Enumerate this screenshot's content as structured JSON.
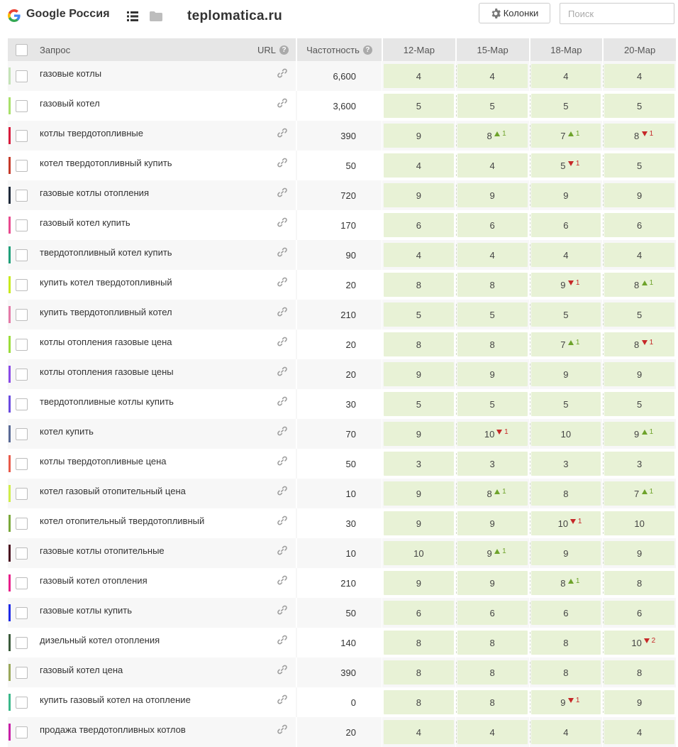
{
  "header": {
    "engine": "Google Россия",
    "site": "teplomatica.ru",
    "columns_button": "Колонки",
    "search_placeholder": "Поиск"
  },
  "table": {
    "headers": {
      "query": "Запрос",
      "url": "URL",
      "frequency": "Частотность",
      "dates": [
        "12-Мар",
        "15-Мар",
        "18-Мар",
        "20-Мар"
      ]
    },
    "rows": [
      {
        "color": "#c5e3b8",
        "query": "газовые котлы",
        "freq": "6,600",
        "pos": [
          {
            "v": "4"
          },
          {
            "v": "4"
          },
          {
            "v": "4"
          },
          {
            "v": "4"
          }
        ]
      },
      {
        "color": "#a8e06a",
        "query": "газовый котел",
        "freq": "3,600",
        "pos": [
          {
            "v": "5"
          },
          {
            "v": "5"
          },
          {
            "v": "5"
          },
          {
            "v": "5"
          }
        ]
      },
      {
        "color": "#d81b3c",
        "query": "котлы твердотопливные",
        "freq": "390",
        "pos": [
          {
            "v": "9"
          },
          {
            "v": "8",
            "d": "1",
            "dir": "up"
          },
          {
            "v": "7",
            "d": "1",
            "dir": "up"
          },
          {
            "v": "8",
            "d": "1",
            "dir": "down"
          }
        ]
      },
      {
        "color": "#c53a2a",
        "query": "котел твердотопливный купить",
        "freq": "50",
        "pos": [
          {
            "v": "4"
          },
          {
            "v": "4"
          },
          {
            "v": "5",
            "d": "1",
            "dir": "down"
          },
          {
            "v": "5"
          }
        ]
      },
      {
        "color": "#1f2a3a",
        "query": "газовые котлы отопления",
        "freq": "720",
        "pos": [
          {
            "v": "9"
          },
          {
            "v": "9"
          },
          {
            "v": "9"
          },
          {
            "v": "9"
          }
        ]
      },
      {
        "color": "#e84a8e",
        "query": "газовый котел купить",
        "freq": "170",
        "pos": [
          {
            "v": "6"
          },
          {
            "v": "6"
          },
          {
            "v": "6"
          },
          {
            "v": "6"
          }
        ]
      },
      {
        "color": "#1fa07a",
        "query": "твердотопливный котел купить",
        "freq": "90",
        "pos": [
          {
            "v": "4"
          },
          {
            "v": "4"
          },
          {
            "v": "4"
          },
          {
            "v": "4"
          }
        ]
      },
      {
        "color": "#c8ea1e",
        "query": "купить котел твердотопливный",
        "freq": "20",
        "pos": [
          {
            "v": "8"
          },
          {
            "v": "8"
          },
          {
            "v": "9",
            "d": "1",
            "dir": "down"
          },
          {
            "v": "8",
            "d": "1",
            "dir": "up"
          }
        ]
      },
      {
        "color": "#e57aa8",
        "query": "купить твердотопливный котел",
        "freq": "210",
        "pos": [
          {
            "v": "5"
          },
          {
            "v": "5"
          },
          {
            "v": "5"
          },
          {
            "v": "5"
          }
        ]
      },
      {
        "color": "#9bdc3a",
        "query": "котлы отопления газовые цена",
        "freq": "20",
        "pos": [
          {
            "v": "8"
          },
          {
            "v": "8"
          },
          {
            "v": "7",
            "d": "1",
            "dir": "up"
          },
          {
            "v": "8",
            "d": "1",
            "dir": "down"
          }
        ]
      },
      {
        "color": "#8a4ae8",
        "query": "котлы отопления газовые цены",
        "freq": "20",
        "pos": [
          {
            "v": "9"
          },
          {
            "v": "9"
          },
          {
            "v": "9"
          },
          {
            "v": "9"
          }
        ]
      },
      {
        "color": "#6a4ae0",
        "query": "твердотопливные котлы купить",
        "freq": "30",
        "pos": [
          {
            "v": "5"
          },
          {
            "v": "5"
          },
          {
            "v": "5"
          },
          {
            "v": "5"
          }
        ]
      },
      {
        "color": "#5a6a96",
        "query": "котел купить",
        "freq": "70",
        "pos": [
          {
            "v": "9"
          },
          {
            "v": "10",
            "d": "1",
            "dir": "down"
          },
          {
            "v": "10"
          },
          {
            "v": "9",
            "d": "1",
            "dir": "up"
          }
        ]
      },
      {
        "color": "#e85a4a",
        "query": "котлы твердотопливные цена",
        "freq": "50",
        "pos": [
          {
            "v": "3"
          },
          {
            "v": "3"
          },
          {
            "v": "3"
          },
          {
            "v": "3"
          }
        ]
      },
      {
        "color": "#d0ee4a",
        "query": "котел газовый отопительный цена",
        "freq": "10",
        "pos": [
          {
            "v": "9"
          },
          {
            "v": "8",
            "d": "1",
            "dir": "up"
          },
          {
            "v": "8"
          },
          {
            "v": "7",
            "d": "1",
            "dir": "up"
          }
        ]
      },
      {
        "color": "#7aa83a",
        "query": "котел отопительный твердотопливный",
        "freq": "30",
        "pos": [
          {
            "v": "9"
          },
          {
            "v": "9"
          },
          {
            "v": "10",
            "d": "1",
            "dir": "down"
          },
          {
            "v": "10"
          }
        ]
      },
      {
        "color": "#4a1020",
        "query": "газовые котлы отопительные",
        "freq": "10",
        "pos": [
          {
            "v": "10"
          },
          {
            "v": "9",
            "d": "1",
            "dir": "up"
          },
          {
            "v": "9"
          },
          {
            "v": "9"
          }
        ]
      },
      {
        "color": "#e81e8a",
        "query": "газовый котел отопления",
        "freq": "210",
        "pos": [
          {
            "v": "9"
          },
          {
            "v": "9"
          },
          {
            "v": "8",
            "d": "1",
            "dir": "up"
          },
          {
            "v": "8"
          }
        ]
      },
      {
        "color": "#1e2ae8",
        "query": "газовые котлы купить",
        "freq": "50",
        "pos": [
          {
            "v": "6"
          },
          {
            "v": "6"
          },
          {
            "v": "6"
          },
          {
            "v": "6"
          }
        ]
      },
      {
        "color": "#3a5a3a",
        "query": "дизельный котел отопления",
        "freq": "140",
        "pos": [
          {
            "v": "8"
          },
          {
            "v": "8"
          },
          {
            "v": "8"
          },
          {
            "v": "10",
            "d": "2",
            "dir": "down"
          }
        ]
      },
      {
        "color": "#9aa85a",
        "query": "газовый котел цена",
        "freq": "390",
        "pos": [
          {
            "v": "8"
          },
          {
            "v": "8"
          },
          {
            "v": "8"
          },
          {
            "v": "8"
          }
        ]
      },
      {
        "color": "#3ab88a",
        "query": "купить газовый котел на отопление",
        "freq": "0",
        "pos": [
          {
            "v": "8"
          },
          {
            "v": "8"
          },
          {
            "v": "9",
            "d": "1",
            "dir": "down"
          },
          {
            "v": "9"
          }
        ]
      },
      {
        "color": "#c81ea8",
        "query": "продажа твердотопливных котлов",
        "freq": "20",
        "pos": [
          {
            "v": "4"
          },
          {
            "v": "4"
          },
          {
            "v": "4"
          },
          {
            "v": "4"
          }
        ]
      }
    ]
  },
  "icons": {
    "engine_logo": "google-g-icon",
    "list_view": "list-icon",
    "folder": "folder-icon",
    "columns": "gear-icon",
    "url_link": "link-icon",
    "help": "help-icon",
    "increase": "triangle-up-icon",
    "decrease": "triangle-down-icon"
  },
  "colors": {
    "position_cell": "#e8f2d6",
    "delta_up": "#6ea32b",
    "delta_down": "#c62828",
    "header_bg": "#e6e6e6"
  }
}
